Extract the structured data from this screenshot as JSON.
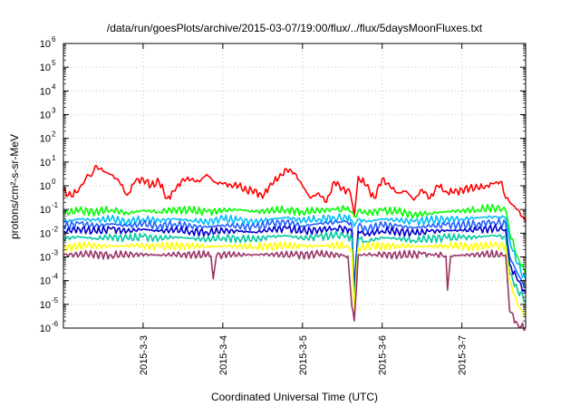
{
  "chart_data": {
    "type": "line",
    "title": "/data/run/goesPlots/archive/2015-03-07/19:00/flux/../flux/5daysMoonFluxes.txt",
    "xlabel": "Coordinated Universal Time (UTC)",
    "ylabel": "protons/cm²-s-sr-MeV",
    "yscale": "log",
    "ylim": [
      1e-06,
      1000000
    ],
    "xlim": [
      2.0,
      7.8
    ],
    "grid": true,
    "legend": "none",
    "x_ticks": [
      {
        "value": 3,
        "label": "2015-3-3"
      },
      {
        "value": 4,
        "label": "2015-3-4"
      },
      {
        "value": 5,
        "label": "2015-3-5"
      },
      {
        "value": 6,
        "label": "2015-3-6"
      },
      {
        "value": 7,
        "label": "2015-3-7"
      }
    ],
    "y_ticks": [
      {
        "value": 1e-06,
        "base": "10",
        "exp": "-6"
      },
      {
        "value": 1e-05,
        "base": "10",
        "exp": "-5"
      },
      {
        "value": 0.0001,
        "base": "10",
        "exp": "-4"
      },
      {
        "value": 0.001,
        "base": "10",
        "exp": "-3"
      },
      {
        "value": 0.01,
        "base": "10",
        "exp": "-2"
      },
      {
        "value": 0.1,
        "base": "10",
        "exp": "-1"
      },
      {
        "value": 1,
        "base": "10",
        "exp": "0"
      },
      {
        "value": 10,
        "base": "10",
        "exp": "1"
      },
      {
        "value": 100,
        "base": "10",
        "exp": "2"
      },
      {
        "value": 1000,
        "base": "10",
        "exp": "3"
      },
      {
        "value": 10000,
        "base": "10",
        "exp": "4"
      },
      {
        "value": 100000,
        "base": "10",
        "exp": "5"
      },
      {
        "value": 1000000,
        "base": "10",
        "exp": "6"
      }
    ],
    "series": [
      {
        "color": "#ff0000",
        "x": [
          2.0,
          2.1,
          2.2,
          2.25,
          2.3,
          2.35,
          2.4,
          2.45,
          2.5,
          2.6,
          2.7,
          2.8,
          2.9,
          3.0,
          3.1,
          3.2,
          3.3,
          3.4,
          3.5,
          3.6,
          3.7,
          3.8,
          3.9,
          4.0,
          4.1,
          4.2,
          4.3,
          4.4,
          4.5,
          4.6,
          4.7,
          4.8,
          4.9,
          5.0,
          5.1,
          5.2,
          5.3,
          5.4,
          5.5,
          5.6,
          5.65,
          5.7,
          5.8,
          5.9,
          6.0,
          6.1,
          6.2,
          6.3,
          6.4,
          6.5,
          6.6,
          6.7,
          6.8,
          6.9,
          7.0,
          7.1,
          7.2,
          7.3,
          7.4,
          7.5,
          7.55,
          7.6,
          7.7,
          7.8
        ],
        "y": [
          0.6,
          0.35,
          0.8,
          1.2,
          3,
          2.5,
          7,
          5,
          4,
          3,
          1.5,
          0.4,
          1.5,
          2,
          1,
          1.5,
          0.3,
          0.6,
          2,
          1.8,
          1.5,
          3,
          1.4,
          1.2,
          1.1,
          1,
          0.6,
          0.7,
          0.3,
          1.3,
          2,
          5,
          3.5,
          1,
          0.3,
          0.5,
          0.2,
          1.5,
          0.8,
          0.5,
          0.05,
          2.5,
          1,
          0.3,
          2,
          0.9,
          0.5,
          0.6,
          0.25,
          0.7,
          0.3,
          1,
          0.6,
          0.5,
          0.7,
          0.8,
          0.8,
          1,
          1.2,
          1.5,
          0.3,
          0.2,
          0.1,
          0.03
        ]
      },
      {
        "color": "#00ff00",
        "x": [
          2.0,
          2.2,
          2.4,
          2.6,
          2.8,
          3.0,
          3.2,
          3.4,
          3.6,
          3.8,
          4.0,
          4.2,
          4.4,
          4.6,
          4.8,
          5.0,
          5.2,
          5.4,
          5.55,
          5.62,
          5.65,
          5.7,
          5.8,
          6.0,
          6.2,
          6.4,
          6.6,
          6.8,
          7.0,
          7.2,
          7.4,
          7.55,
          7.6,
          7.7,
          7.8
        ],
        "y": [
          0.07,
          0.09,
          0.08,
          0.1,
          0.07,
          0.09,
          0.08,
          0.1,
          0.09,
          0.08,
          0.09,
          0.1,
          0.08,
          0.09,
          0.1,
          0.08,
          0.09,
          0.1,
          0.1,
          0.08,
          0.05,
          0.09,
          0.07,
          0.09,
          0.08,
          0.06,
          0.07,
          0.08,
          0.09,
          0.1,
          0.12,
          0.1,
          0.01,
          0.001,
          0.0002
        ]
      },
      {
        "color": "#00bbff",
        "x": [
          2.0,
          2.2,
          2.4,
          2.6,
          2.8,
          3.0,
          3.2,
          3.4,
          3.6,
          3.8,
          4.0,
          4.2,
          4.4,
          4.6,
          4.8,
          5.0,
          5.2,
          5.4,
          5.55,
          5.62,
          5.65,
          5.7,
          5.8,
          6.0,
          6.2,
          6.4,
          6.6,
          6.8,
          7.0,
          7.2,
          7.4,
          7.55,
          7.6,
          7.7,
          7.8
        ],
        "y": [
          0.03,
          0.04,
          0.035,
          0.04,
          0.03,
          0.04,
          0.035,
          0.04,
          0.035,
          0.03,
          0.04,
          0.035,
          0.03,
          0.04,
          0.045,
          0.035,
          0.04,
          0.045,
          0.045,
          0.035,
          0.02,
          0.04,
          0.03,
          0.04,
          0.035,
          0.03,
          0.035,
          0.04,
          0.04,
          0.045,
          0.05,
          0.045,
          0.005,
          0.0005,
          0.0001
        ]
      },
      {
        "color": "#2060ff",
        "x": [
          2.0,
          2.2,
          2.4,
          2.6,
          2.8,
          3.0,
          3.2,
          3.4,
          3.6,
          3.8,
          4.0,
          4.2,
          4.4,
          4.6,
          4.8,
          5.0,
          5.2,
          5.4,
          5.55,
          5.62,
          5.65,
          5.7,
          5.8,
          6.0,
          6.2,
          6.4,
          6.6,
          6.8,
          7.0,
          7.2,
          7.4,
          7.55,
          7.6,
          7.7,
          7.8
        ],
        "y": [
          0.02,
          0.025,
          0.02,
          0.025,
          0.02,
          0.025,
          0.02,
          0.025,
          0.02,
          0.018,
          0.022,
          0.02,
          0.018,
          0.025,
          0.03,
          0.02,
          0.025,
          0.03,
          0.03,
          0.02,
          5e-05,
          0.02,
          0.015,
          0.022,
          0.02,
          0.017,
          0.02,
          0.022,
          0.022,
          0.025,
          0.03,
          0.025,
          0.001,
          0.0002,
          5e-05
        ]
      },
      {
        "color": "#0000cc",
        "x": [
          2.0,
          2.2,
          2.4,
          2.6,
          2.8,
          3.0,
          3.2,
          3.4,
          3.6,
          3.8,
          4.0,
          4.2,
          4.4,
          4.6,
          4.8,
          5.0,
          5.2,
          5.4,
          5.55,
          5.62,
          5.65,
          5.7,
          5.8,
          6.0,
          6.2,
          6.4,
          6.6,
          6.8,
          7.0,
          7.2,
          7.4,
          7.55,
          7.6,
          7.7,
          7.8
        ],
        "y": [
          0.012,
          0.015,
          0.012,
          0.015,
          0.012,
          0.015,
          0.012,
          0.014,
          0.012,
          0.011,
          0.013,
          0.012,
          0.011,
          0.014,
          0.016,
          0.012,
          0.014,
          0.016,
          0.016,
          0.012,
          3e-05,
          0.012,
          0.009,
          0.013,
          0.012,
          0.01,
          0.012,
          0.013,
          0.013,
          0.014,
          0.016,
          0.014,
          0.0005,
          0.0001,
          3e-05
        ]
      },
      {
        "color": "#00c8a0",
        "x": [
          2.0,
          2.2,
          2.4,
          2.6,
          2.8,
          3.0,
          3.2,
          3.4,
          3.6,
          3.8,
          4.0,
          4.2,
          4.4,
          4.6,
          4.8,
          5.0,
          5.2,
          5.4,
          5.55,
          5.62,
          5.65,
          5.7,
          5.8,
          6.0,
          6.2,
          6.4,
          6.6,
          6.8,
          7.0,
          7.2,
          7.4,
          7.55,
          7.6,
          7.7,
          7.8
        ],
        "y": [
          0.006,
          0.007,
          0.006,
          0.007,
          0.006,
          0.007,
          0.006,
          0.007,
          0.006,
          0.0055,
          0.0065,
          0.006,
          0.0055,
          0.007,
          0.008,
          0.006,
          0.007,
          0.008,
          0.008,
          0.006,
          1e-05,
          0.006,
          0.0045,
          0.0065,
          0.006,
          0.005,
          0.006,
          0.0065,
          0.0065,
          0.007,
          0.008,
          0.007,
          0.0002,
          4e-05,
          1.5e-05
        ]
      },
      {
        "color": "#ffff00",
        "x": [
          2.0,
          2.3,
          2.6,
          2.9,
          3.2,
          3.5,
          3.8,
          4.1,
          4.4,
          4.7,
          5.0,
          5.3,
          5.55,
          5.62,
          5.65,
          5.7,
          5.9,
          6.2,
          6.5,
          6.8,
          7.1,
          7.4,
          7.55,
          7.6,
          7.7,
          7.8
        ],
        "y": [
          0.0025,
          0.003,
          0.0028,
          0.003,
          0.0027,
          0.003,
          0.0028,
          0.0029,
          0.0027,
          0.003,
          0.0028,
          0.003,
          0.003,
          0.002,
          5e-06,
          0.0025,
          0.0028,
          0.003,
          0.0027,
          0.003,
          0.0028,
          0.003,
          0.003,
          0.0001,
          1e-05,
          3e-06
        ]
      },
      {
        "color": "#993366",
        "x": [
          2.0,
          2.3,
          2.6,
          2.9,
          3.2,
          3.5,
          3.8,
          3.85,
          3.88,
          3.92,
          4.0,
          4.3,
          4.6,
          4.9,
          5.2,
          5.5,
          5.57,
          5.62,
          5.65,
          5.7,
          5.9,
          6.2,
          6.5,
          6.75,
          6.8,
          6.82,
          6.86,
          7.0,
          7.3,
          7.55,
          7.6,
          7.7,
          7.8
        ],
        "y": [
          0.0012,
          0.0013,
          0.0012,
          0.0013,
          0.0012,
          0.0013,
          0.0012,
          0.0011,
          0.00012,
          0.0011,
          0.0013,
          0.0012,
          0.0013,
          0.0012,
          0.0013,
          0.0012,
          0.0011,
          8e-06,
          2e-06,
          0.0012,
          0.0013,
          0.0012,
          0.0013,
          0.0012,
          0.0011,
          4e-05,
          0.0011,
          0.0012,
          0.0013,
          0.0012,
          5e-06,
          1.5e-06,
          9e-07
        ]
      }
    ]
  }
}
